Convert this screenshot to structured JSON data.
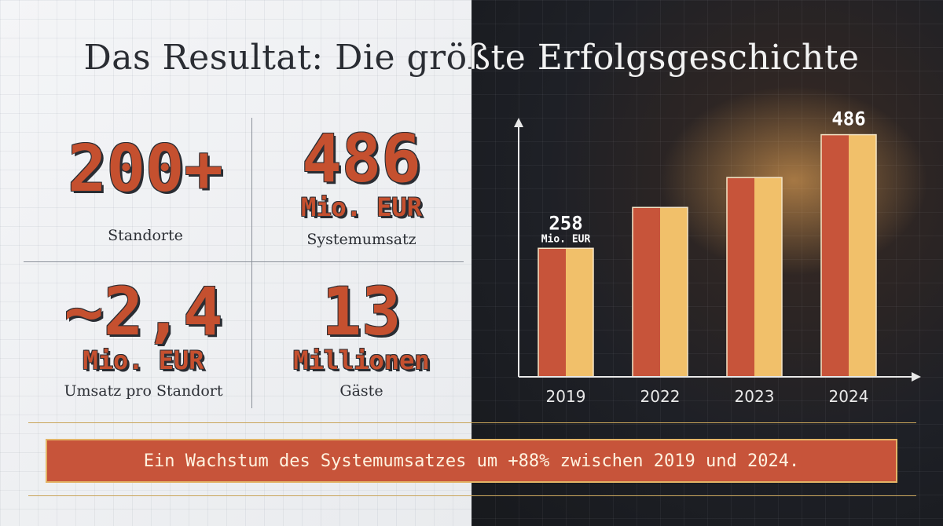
{
  "title": "Das Resultat: Die größte Erfolgsgeschichte",
  "stats": [
    {
      "value": "200+",
      "caption": "Standorte"
    },
    {
      "value": "486",
      "unit": "Mio. EUR",
      "caption": "Systemumsatz"
    },
    {
      "value": "~2,4",
      "unit": "Mio. EUR",
      "caption": "Umsatz pro Standort"
    },
    {
      "value": "13",
      "unit": "Millionen",
      "caption": "Gäste"
    }
  ],
  "banner": "Ein Wachstum des Systemumsatzes um +88% zwischen 2019 und 2024.",
  "colors": {
    "accent": "#c5502f",
    "bar_light": "#f1c06a",
    "bar_dark": "#c7543a"
  },
  "chart_data": {
    "type": "bar",
    "categories": [
      "2019",
      "2022",
      "2023",
      "2024"
    ],
    "values": [
      258,
      340,
      400,
      486
    ],
    "data_labels": [
      {
        "category": "2019",
        "value": "258",
        "unit": "Mio. EUR"
      },
      {
        "category": "2024",
        "value": "486"
      }
    ],
    "ylim": [
      0,
      520
    ],
    "xlabel": "",
    "ylabel": "",
    "grid": true
  }
}
